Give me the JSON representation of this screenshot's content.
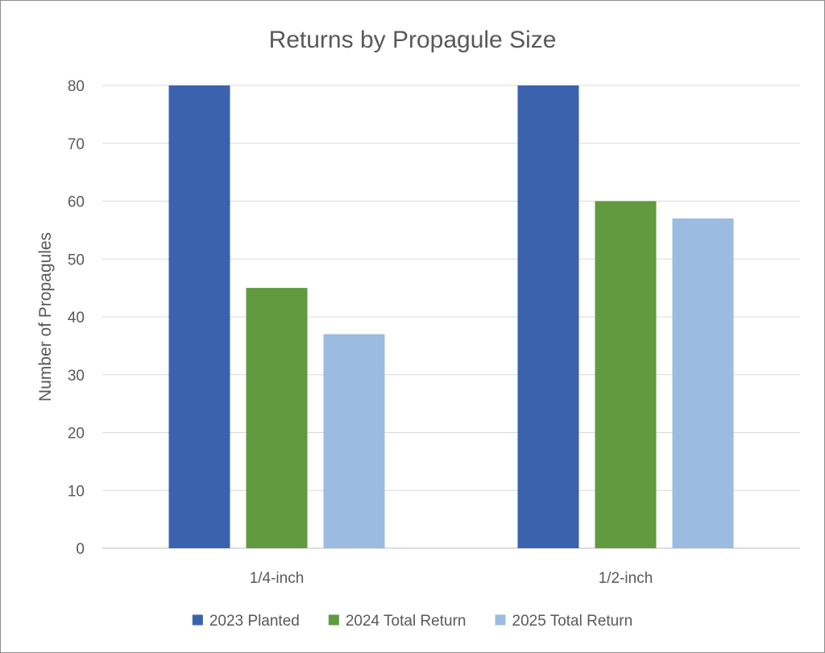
{
  "chart_data": {
    "type": "bar",
    "title": "Returns by Propagule Size",
    "ylabel": "Number of Propagules",
    "xlabel": "",
    "categories": [
      "1/4-inch",
      "1/2-inch"
    ],
    "series": [
      {
        "name": "2023 Planted",
        "values": [
          80,
          80
        ],
        "color": "#3b62ad"
      },
      {
        "name": "2024 Total Return",
        "values": [
          45,
          60
        ],
        "color": "#629a3f"
      },
      {
        "name": "2025 Total Return",
        "values": [
          37,
          57
        ],
        "color": "#9bbbe0"
      }
    ],
    "ylim": [
      0,
      80
    ],
    "yticks": [
      0,
      10,
      20,
      30,
      40,
      50,
      60,
      70,
      80
    ],
    "grid": true,
    "legend_position": "bottom"
  }
}
